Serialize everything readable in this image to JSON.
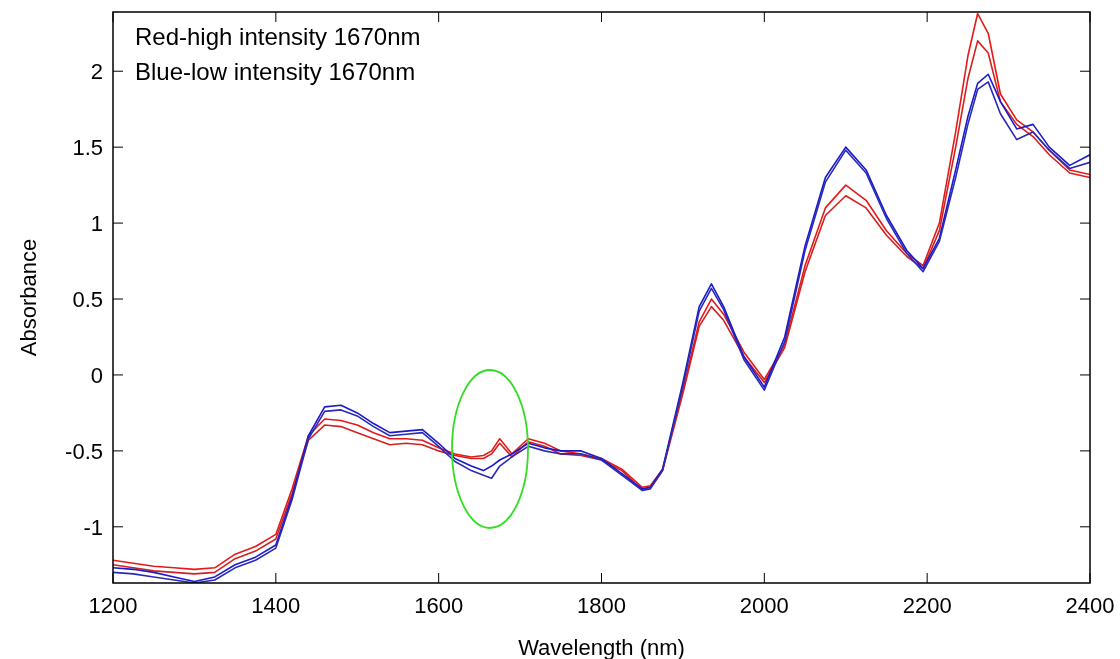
{
  "chart_data": {
    "type": "line",
    "xlabel": "Wavelength (nm)",
    "ylabel": "Absorbance",
    "annotations": [
      "Red-high intensity 1670nm",
      "Blue-low intensity 1670nm"
    ],
    "x": [
      1200,
      1225,
      1250,
      1275,
      1300,
      1325,
      1350,
      1375,
      1400,
      1420,
      1440,
      1460,
      1480,
      1500,
      1520,
      1540,
      1560,
      1580,
      1600,
      1620,
      1640,
      1655,
      1665,
      1675,
      1690,
      1710,
      1730,
      1750,
      1775,
      1800,
      1825,
      1850,
      1860,
      1875,
      1900,
      1920,
      1935,
      1950,
      1975,
      2000,
      2025,
      2050,
      2075,
      2100,
      2125,
      2150,
      2175,
      2195,
      2215,
      2235,
      2250,
      2262,
      2275,
      2290,
      2310,
      2330,
      2350,
      2375,
      2400
    ],
    "series": [
      {
        "color": "#e41a1a",
        "values": [
          -1.22,
          -1.24,
          -1.26,
          -1.27,
          -1.28,
          -1.27,
          -1.18,
          -1.13,
          -1.05,
          -0.75,
          -0.4,
          -0.29,
          -0.3,
          -0.33,
          -0.38,
          -0.42,
          -0.42,
          -0.43,
          -0.48,
          -0.52,
          -0.54,
          -0.53,
          -0.5,
          -0.42,
          -0.52,
          -0.42,
          -0.45,
          -0.5,
          -0.52,
          -0.55,
          -0.62,
          -0.74,
          -0.73,
          -0.62,
          -0.1,
          0.35,
          0.5,
          0.4,
          0.15,
          -0.03,
          0.2,
          0.72,
          1.1,
          1.25,
          1.15,
          0.95,
          0.8,
          0.72,
          1.0,
          1.6,
          2.1,
          2.38,
          2.25,
          1.85,
          1.68,
          1.6,
          1.48,
          1.35,
          1.32
        ]
      },
      {
        "color": "#d42020",
        "values": [
          -1.25,
          -1.27,
          -1.29,
          -1.3,
          -1.31,
          -1.3,
          -1.21,
          -1.16,
          -1.08,
          -0.78,
          -0.43,
          -0.33,
          -0.34,
          -0.38,
          -0.42,
          -0.46,
          -0.45,
          -0.46,
          -0.5,
          -0.53,
          -0.55,
          -0.55,
          -0.52,
          -0.45,
          -0.54,
          -0.44,
          -0.47,
          -0.52,
          -0.53,
          -0.56,
          -0.63,
          -0.76,
          -0.74,
          -0.63,
          -0.12,
          0.32,
          0.45,
          0.36,
          0.12,
          -0.05,
          0.18,
          0.68,
          1.05,
          1.18,
          1.1,
          0.92,
          0.78,
          0.7,
          0.95,
          1.5,
          1.95,
          2.2,
          2.12,
          1.8,
          1.65,
          1.57,
          1.45,
          1.33,
          1.3
        ]
      },
      {
        "color": "#1a1acc",
        "values": [
          -1.27,
          -1.28,
          -1.3,
          -1.33,
          -1.36,
          -1.33,
          -1.25,
          -1.2,
          -1.12,
          -0.8,
          -0.4,
          -0.21,
          -0.2,
          -0.25,
          -0.32,
          -0.38,
          -0.37,
          -0.36,
          -0.45,
          -0.55,
          -0.6,
          -0.63,
          -0.6,
          -0.56,
          -0.52,
          -0.45,
          -0.48,
          -0.5,
          -0.5,
          -0.55,
          -0.65,
          -0.75,
          -0.74,
          -0.62,
          -0.05,
          0.45,
          0.6,
          0.45,
          0.12,
          -0.08,
          0.25,
          0.85,
          1.3,
          1.5,
          1.35,
          1.05,
          0.82,
          0.7,
          0.9,
          1.35,
          1.7,
          1.92,
          1.98,
          1.8,
          1.62,
          1.65,
          1.5,
          1.38,
          1.45
        ]
      },
      {
        "color": "#2a2ab8",
        "values": [
          -1.3,
          -1.31,
          -1.33,
          -1.35,
          -1.37,
          -1.35,
          -1.27,
          -1.22,
          -1.14,
          -0.82,
          -0.42,
          -0.24,
          -0.23,
          -0.27,
          -0.34,
          -0.4,
          -0.39,
          -0.38,
          -0.47,
          -0.57,
          -0.63,
          -0.66,
          -0.68,
          -0.6,
          -0.54,
          -0.47,
          -0.5,
          -0.52,
          -0.52,
          -0.56,
          -0.66,
          -0.76,
          -0.75,
          -0.63,
          -0.07,
          0.42,
          0.57,
          0.43,
          0.1,
          -0.1,
          0.22,
          0.82,
          1.27,
          1.48,
          1.33,
          1.03,
          0.8,
          0.68,
          0.88,
          1.3,
          1.65,
          1.88,
          1.93,
          1.72,
          1.55,
          1.6,
          1.48,
          1.36,
          1.4
        ]
      }
    ],
    "xlim": [
      1200,
      2400
    ],
    "ylim": [
      -1.37,
      2.39
    ],
    "xticks": [
      1200,
      1400,
      1600,
      1800,
      2000,
      2200,
      2400
    ],
    "yticks": [
      -1,
      -0.5,
      0,
      0.5,
      1,
      1.5,
      2
    ],
    "grid": false,
    "marker": "none",
    "line_style": "solid"
  }
}
